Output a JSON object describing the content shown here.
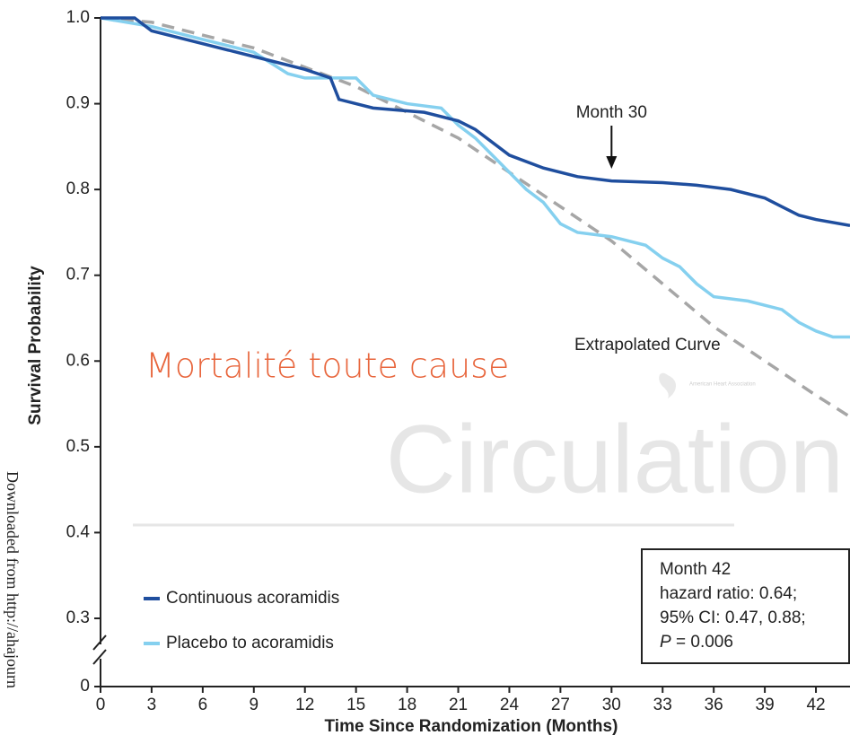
{
  "chart_data": {
    "type": "line",
    "y_axis_label": "Survival Probability",
    "x_axis_label": "Time Since Randomization (Months)",
    "overlay_title": "Mortalité toute cause",
    "watermark": "Circulation",
    "watermark_logo": "American Heart Association",
    "side_note": "Downloaded from http://ahajourn",
    "xlim": [
      0,
      44
    ],
    "xticks": [
      0,
      3,
      6,
      9,
      12,
      15,
      18,
      21,
      24,
      27,
      30,
      33,
      36,
      39,
      42
    ],
    "ylim": [
      0,
      1
    ],
    "y_axis_break": true,
    "yticks": [
      0,
      0.3,
      0.4,
      0.5,
      0.6,
      0.7,
      0.8,
      0.9,
      {
        "value": 1,
        "label": "1.0"
      }
    ],
    "series": [
      {
        "name": "Continuous acoramidis",
        "color": "#1f4e9e",
        "x": [
          0,
          2,
          3,
          6,
          9,
          12,
          13.5,
          14,
          15,
          16,
          19,
          21,
          22,
          24,
          26,
          28,
          30,
          33,
          35,
          37,
          39,
          40,
          41,
          42,
          44
        ],
        "values": [
          1,
          1,
          0.985,
          0.97,
          0.955,
          0.94,
          0.93,
          0.905,
          0.9,
          0.895,
          0.89,
          0.88,
          0.87,
          0.84,
          0.825,
          0.815,
          0.81,
          0.808,
          0.805,
          0.8,
          0.79,
          0.78,
          0.77,
          0.765,
          0.758
        ]
      },
      {
        "name": "Placebo to acoramidis",
        "color": "#85d0ef",
        "x": [
          0,
          3,
          6,
          9,
          11,
          12,
          15,
          16,
          18,
          20,
          21,
          22,
          23,
          24,
          25,
          26,
          27,
          28,
          30,
          32,
          33,
          34,
          35,
          36,
          38,
          40,
          41,
          42,
          43,
          44
        ],
        "values": [
          1,
          0.99,
          0.975,
          0.96,
          0.935,
          0.93,
          0.93,
          0.91,
          0.9,
          0.895,
          0.875,
          0.86,
          0.84,
          0.82,
          0.8,
          0.785,
          0.76,
          0.75,
          0.745,
          0.735,
          0.72,
          0.71,
          0.69,
          0.675,
          0.67,
          0.66,
          0.645,
          0.635,
          0.628,
          0.628
        ]
      }
    ],
    "extrapolated": {
      "name": "Extrapolated Curve",
      "color": "#a6a6a6",
      "x": [
        0,
        3,
        9,
        15,
        21,
        27,
        30,
        33,
        36,
        39,
        42,
        44
      ],
      "values": [
        1,
        0.995,
        0.965,
        0.92,
        0.86,
        0.78,
        0.74,
        0.69,
        0.64,
        0.6,
        0.56,
        0.535
      ]
    },
    "annotation": {
      "text": "Month 30",
      "x": 30
    },
    "stats_box": {
      "lines": [
        "Month 42",
        "hazard ratio: 0.64;",
        "95% CI: 0.47, 0.88;"
      ],
      "p_symbol": "P",
      "p_text": "= 0.006"
    }
  }
}
